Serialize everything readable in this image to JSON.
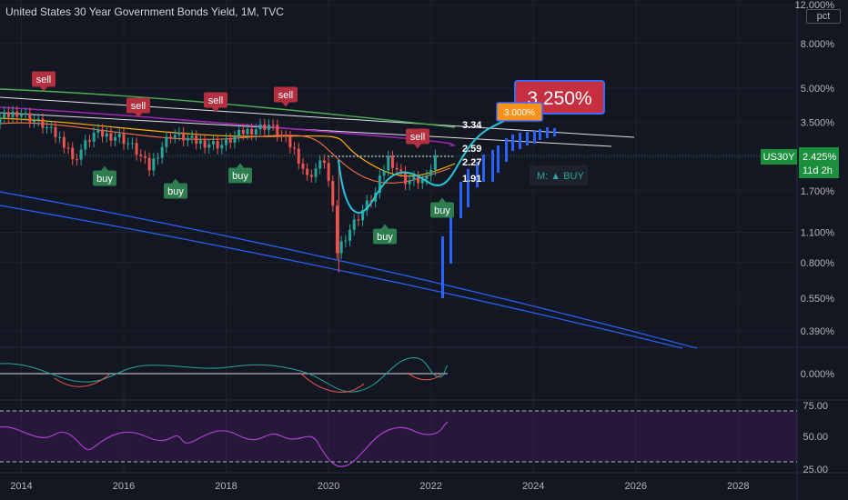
{
  "chart_data": {
    "type": "line",
    "title": "United States 30 Year Government Bonds Yield, 1M, TVC",
    "y_scale": "log",
    "unit": "pct",
    "y_ticks": [
      "12.000%",
      "8.000%",
      "5.000%",
      "3.500%",
      "2.425%",
      "1.700%",
      "1.100%",
      "0.800%",
      "0.550%",
      "0.390%"
    ],
    "x_ticks": [
      "2014",
      "2016",
      "2018",
      "2020",
      "2022",
      "2024",
      "2026",
      "2028"
    ],
    "price_label": {
      "symbol": "US30Y",
      "value": "2.425%",
      "countdown": "11d 2h"
    },
    "projection": {
      "target_label": "3.250%",
      "small_target_label": "3.000%",
      "levels": [
        {
          "label": "3.34",
          "value": 3.34
        },
        {
          "label": "2.59",
          "value": 2.59
        },
        {
          "label": "2.27",
          "value": 2.27
        },
        {
          "label": "1.91",
          "value": 1.91
        }
      ],
      "momentum_label": "M: ▲ BUY"
    },
    "price_series": [
      {
        "date": "2013-01",
        "yield": 3.1
      },
      {
        "date": "2013-06",
        "yield": 3.5
      },
      {
        "date": "2013-12",
        "yield": 3.9
      },
      {
        "date": "2014-06",
        "yield": 3.4
      },
      {
        "date": "2014-12",
        "yield": 2.7
      },
      {
        "date": "2015-01",
        "yield": 2.3
      },
      {
        "date": "2015-06",
        "yield": 3.1
      },
      {
        "date": "2015-12",
        "yield": 3.0
      },
      {
        "date": "2016-03",
        "yield": 2.7
      },
      {
        "date": "2016-07",
        "yield": 2.15
      },
      {
        "date": "2016-12",
        "yield": 3.1
      },
      {
        "date": "2017-06",
        "yield": 2.85
      },
      {
        "date": "2017-12",
        "yield": 2.75
      },
      {
        "date": "2018-05",
        "yield": 3.15
      },
      {
        "date": "2018-11",
        "yield": 3.4
      },
      {
        "date": "2019-05",
        "yield": 2.6
      },
      {
        "date": "2019-08",
        "yield": 1.95
      },
      {
        "date": "2019-12",
        "yield": 2.35
      },
      {
        "date": "2020-03",
        "yield": 0.9
      },
      {
        "date": "2020-08",
        "yield": 1.3
      },
      {
        "date": "2020-12",
        "yield": 1.65
      },
      {
        "date": "2021-03",
        "yield": 2.4
      },
      {
        "date": "2021-07",
        "yield": 1.9
      },
      {
        "date": "2021-12",
        "yield": 1.9
      },
      {
        "date": "2022-02",
        "yield": 2.425
      }
    ],
    "signals": [
      {
        "type": "sell",
        "label": "sell",
        "date": "2013-07"
      },
      {
        "type": "sell",
        "label": "sell",
        "date": "2015-04"
      },
      {
        "type": "sell",
        "label": "sell",
        "date": "2017-04"
      },
      {
        "type": "sell",
        "label": "sell",
        "date": "2018-10"
      },
      {
        "type": "sell",
        "label": "sell",
        "date": "2021-07"
      },
      {
        "type": "buy",
        "label": "buy",
        "date": "2015-01"
      },
      {
        "type": "buy",
        "label": "buy",
        "date": "2016-07"
      },
      {
        "type": "buy",
        "label": "buy",
        "date": "2017-12"
      },
      {
        "type": "buy",
        "label": "buy",
        "date": "2020-10"
      },
      {
        "type": "buy",
        "label": "buy",
        "date": "2022-01"
      }
    ],
    "oscillator_ticks": [
      "0.000%"
    ],
    "rsi_ticks": [
      "75.00",
      "50.00",
      "25.00"
    ],
    "colors": {
      "background": "#131722",
      "up": "#26a69a",
      "down": "#ef5350",
      "sell": "#b2303f",
      "buy": "#2e7d4f",
      "projection": "#2962ff",
      "target": "#c62f3f",
      "small_target": "#f7931a",
      "rsi": "#b03fd4",
      "cyan": "#26c6da"
    }
  }
}
